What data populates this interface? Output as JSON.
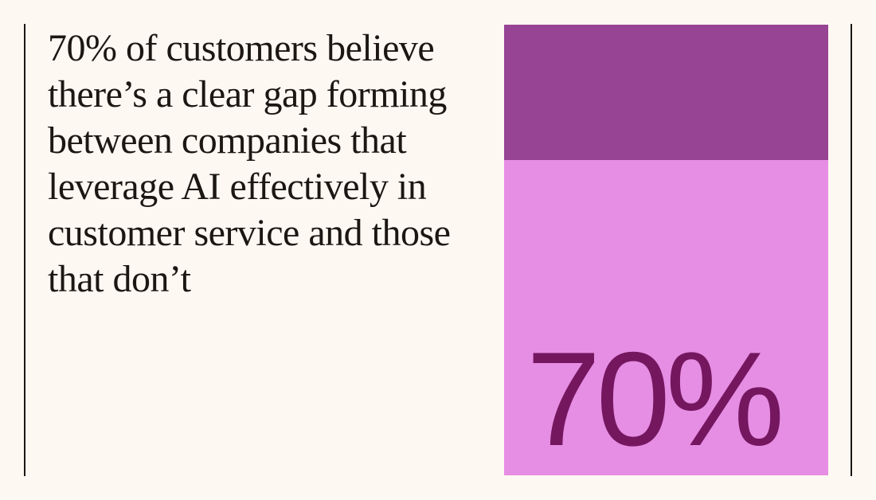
{
  "statement": "70% of customers believe there’s a clear gap forming between companies that leverage AI effectively in customer service and those that don’t",
  "chart_data": {
    "type": "bar",
    "orientation": "vertical-stacked",
    "unit": "%",
    "series": [
      {
        "key": "believe",
        "value": 70,
        "color": "#e68de4"
      },
      {
        "key": "remainder",
        "value": 30,
        "color": "#974495"
      }
    ],
    "ylim": [
      0,
      100
    ],
    "value_label": "70%",
    "value_label_color": "#74175f"
  },
  "colors": {
    "background": "#fdf8f1",
    "text": "#1c1712",
    "rule": "#1c1712"
  }
}
